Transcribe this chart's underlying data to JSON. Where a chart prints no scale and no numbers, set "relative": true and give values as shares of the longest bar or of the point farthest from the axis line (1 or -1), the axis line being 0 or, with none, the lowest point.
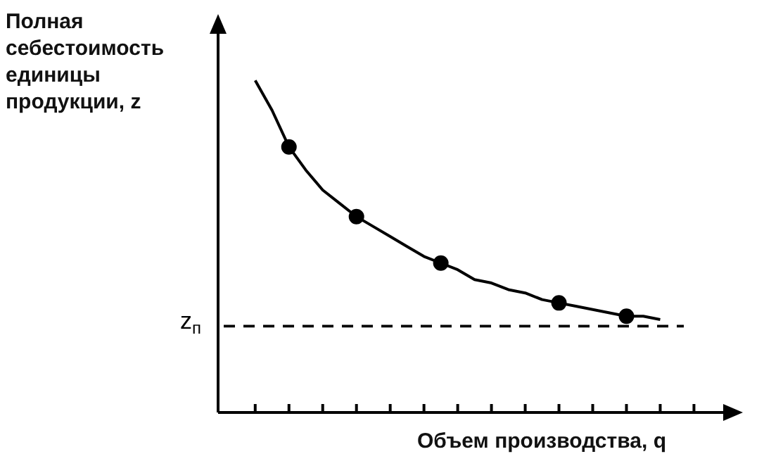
{
  "chart_data": {
    "type": "line",
    "relative": true,
    "ylabel": "Полная себестоимость единицы продукции, z",
    "xlabel": "Объем производства, q",
    "categories": [
      null,
      null,
      null,
      null,
      null,
      null,
      null,
      null,
      null,
      null,
      null,
      null,
      null,
      null,
      null,
      null,
      null,
      null,
      null,
      null,
      null,
      null,
      null,
      null,
      null
    ],
    "series": [
      {
        "color": "#000000",
        "marker": "none",
        "values": [
          1,
          0.91,
          0.8,
          0.73,
          0.67,
          0.63,
          0.59,
          0.56,
          0.53,
          0.5,
          0.47,
          0.45,
          0.43,
          0.4,
          0.39,
          0.37,
          0.36,
          0.34,
          0.33,
          0.32,
          0.31,
          0.3,
          0.29,
          0.29,
          0.28
        ]
      },
      {
        "color": "#000000",
        "marker": "circle",
        "values": [
          null,
          null,
          0.8,
          null,
          null,
          null,
          0.59,
          null,
          null,
          null,
          null,
          0.45,
          null,
          null,
          null,
          null,
          null,
          null,
          0.33,
          null,
          null,
          null,
          0.29,
          null,
          null
        ]
      }
    ],
    "ref_lines": [
      {
        "axis": "y",
        "value": 0.26,
        "label": "z$_{п}$",
        "line_style": "dashed",
        "color": "#000000"
      }
    ]
  }
}
